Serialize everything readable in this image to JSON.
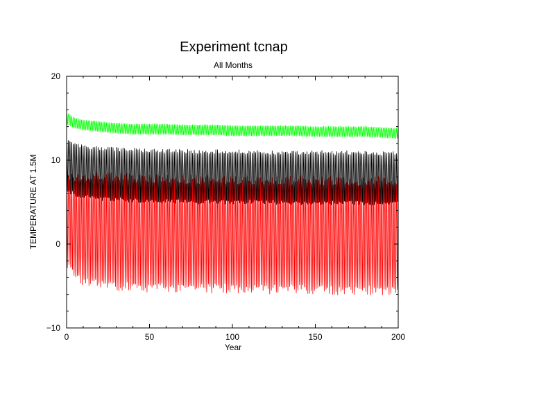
{
  "chart_data": {
    "type": "line",
    "title": "Experiment tcnap",
    "subtitle": "All Months",
    "xlabel": "Year",
    "ylabel": "TEMPERATURE AT 1.5M",
    "xlim": [
      0,
      200
    ],
    "ylim": [
      -10,
      20
    ],
    "xticks": [
      0,
      50,
      100,
      150,
      200
    ],
    "yticks": [
      -10,
      0,
      10,
      20
    ],
    "grid": false,
    "legend": "none",
    "series": [
      {
        "color": "#00ff00",
        "description": "global mean, monthly, small seasonal cycle",
        "x": [
          0,
          5,
          10,
          20,
          30,
          40,
          50,
          60,
          70,
          80,
          90,
          100,
          110,
          120,
          130,
          140,
          150,
          160,
          170,
          180,
          190,
          200
        ],
        "mean": [
          15.0,
          14.4,
          14.2,
          14.0,
          13.8,
          13.7,
          13.7,
          13.7,
          13.6,
          13.6,
          13.6,
          13.5,
          13.5,
          13.5,
          13.5,
          13.5,
          13.4,
          13.4,
          13.4,
          13.4,
          13.3,
          13.2
        ],
        "amplitude": [
          0.7,
          0.6,
          0.6,
          0.6,
          0.6,
          0.6,
          0.6,
          0.6,
          0.6,
          0.6,
          0.6,
          0.6,
          0.6,
          0.6,
          0.6,
          0.6,
          0.6,
          0.6,
          0.6,
          0.6,
          0.6,
          0.6
        ]
      },
      {
        "color": "#000000",
        "description": "monthly, large seasonal cycle",
        "x": [
          0,
          5,
          10,
          20,
          30,
          40,
          50,
          60,
          70,
          80,
          90,
          100,
          110,
          120,
          130,
          140,
          150,
          160,
          170,
          180,
          190,
          200
        ],
        "mean": [
          9.5,
          8.9,
          8.6,
          8.4,
          8.3,
          8.2,
          8.1,
          8.1,
          8.1,
          8.0,
          8.0,
          8.0,
          8.0,
          8.0,
          7.9,
          7.9,
          7.9,
          7.9,
          7.9,
          7.9,
          7.8,
          7.8
        ],
        "amplitude": [
          3.0,
          3.0,
          3.0,
          3.0,
          3.0,
          3.0,
          3.0,
          3.0,
          3.0,
          3.0,
          3.0,
          3.0,
          3.0,
          3.0,
          3.0,
          3.0,
          3.0,
          3.0,
          3.0,
          3.0,
          3.0,
          3.0
        ]
      },
      {
        "color": "#ff0000",
        "description": "monthly, very large seasonal cycle",
        "x": [
          0,
          5,
          10,
          20,
          30,
          40,
          50,
          60,
          70,
          80,
          90,
          100,
          110,
          120,
          130,
          140,
          150,
          160,
          170,
          180,
          190,
          200
        ],
        "mean": [
          2.8,
          2.0,
          1.8,
          1.6,
          1.5,
          1.4,
          1.3,
          1.3,
          1.2,
          1.2,
          1.2,
          1.2,
          1.1,
          1.1,
          1.1,
          1.1,
          1.1,
          1.0,
          1.0,
          1.0,
          1.0,
          1.0
        ],
        "amplitude": [
          5.2,
          5.8,
          6.2,
          6.4,
          6.5,
          6.5,
          6.5,
          6.5,
          6.5,
          6.5,
          6.5,
          6.5,
          6.5,
          6.5,
          6.5,
          6.5,
          6.5,
          6.5,
          6.5,
          6.5,
          6.6,
          6.6
        ]
      }
    ]
  }
}
